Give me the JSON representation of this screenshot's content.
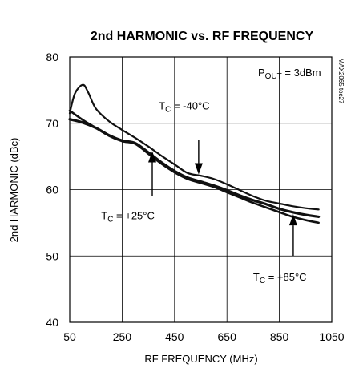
{
  "chart_data": {
    "type": "line",
    "title": "2nd HARMONIC vs. RF FREQUENCY",
    "xlabel": "RF FREQUENCY (MHz)",
    "ylabel": "2nd HARMONIC (dBc)",
    "xlim": [
      50,
      1050
    ],
    "ylim": [
      40,
      80
    ],
    "xticks": [
      50,
      250,
      450,
      650,
      850,
      1050
    ],
    "yticks": [
      40,
      50,
      60,
      70,
      80
    ],
    "grid": true,
    "series": [
      {
        "name": "TC = -40°C",
        "label_main": "T",
        "label_sub": "C",
        "label_rest": " = -40°C",
        "x": [
          50,
          70,
          100,
          120,
          150,
          200,
          250,
          300,
          350,
          400,
          450,
          500,
          550,
          600,
          650,
          700,
          750,
          800,
          850,
          900,
          950,
          1000
        ],
        "y": [
          71.5,
          74.5,
          75.8,
          74.7,
          72.2,
          70.3,
          69.0,
          67.8,
          66.5,
          65.1,
          63.8,
          62.5,
          62.1,
          61.6,
          60.8,
          59.9,
          59.0,
          58.3,
          57.9,
          57.5,
          57.2,
          57.0
        ]
      },
      {
        "name": "TC = +25°C",
        "label_main": "T",
        "label_sub": "C",
        "label_rest": " = +25°C",
        "x": [
          50,
          100,
          150,
          200,
          250,
          300,
          350,
          400,
          450,
          500,
          550,
          600,
          650,
          700,
          750,
          800,
          850,
          900,
          950,
          1000
        ],
        "y": [
          70.6,
          70.1,
          69.3,
          68.2,
          67.4,
          67.0,
          65.6,
          64.1,
          62.8,
          61.8,
          61.2,
          60.6,
          59.9,
          59.1,
          58.4,
          57.8,
          57.1,
          56.6,
          56.2,
          55.9
        ]
      },
      {
        "name": "TC = +85°C",
        "label_main": "T",
        "label_sub": "C",
        "label_rest": " = +85°C",
        "x": [
          50,
          100,
          150,
          200,
          250,
          300,
          350,
          400,
          450,
          500,
          550,
          600,
          650,
          700,
          750,
          800,
          850,
          900,
          950,
          1000
        ],
        "y": [
          71.9,
          70.5,
          69.3,
          68.1,
          67.3,
          66.9,
          65.4,
          63.9,
          62.6,
          61.6,
          61.0,
          60.4,
          59.6,
          58.8,
          58.0,
          57.3,
          56.6,
          55.9,
          55.4,
          55.0
        ]
      }
    ],
    "annotations": {
      "pout": {
        "main": "P",
        "sub": "OUT",
        "rest": " = 3dBm"
      },
      "side_code": "MAX2065 toc27"
    },
    "arrows": [
      {
        "from": [
          542,
          67.5
        ],
        "to": [
          542,
          62.3
        ]
      },
      {
        "from": [
          365,
          59.0
        ],
        "to": [
          365,
          65.8
        ]
      },
      {
        "from": [
          903,
          50.0
        ],
        "to": [
          903,
          56.3
        ]
      }
    ],
    "label_positions": [
      {
        "series": 0,
        "x": 390,
        "y": 72.1
      },
      {
        "series": 1,
        "x": 170,
        "y": 55.5
      },
      {
        "series": 2,
        "x": 750,
        "y": 46.3
      }
    ]
  }
}
